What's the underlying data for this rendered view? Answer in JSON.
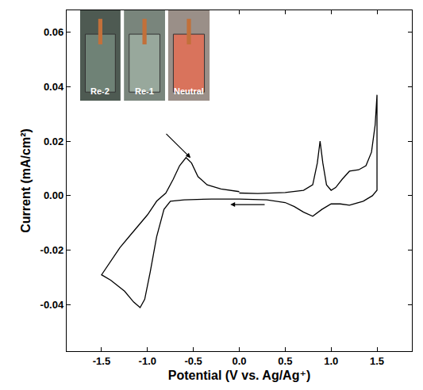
{
  "chart_data": {
    "type": "line",
    "x_label": "Potential (V vs. Ag/Ag⁺)",
    "y_label": "Current (mA/cm²)",
    "color": "#000000",
    "grid": false,
    "annotations": [
      "Re-2",
      "Re-1",
      "Neutral"
    ],
    "xlim": [
      -1.88,
      1.88
    ],
    "xticks": [
      -1.5,
      {
        "value": -1,
        "label": "-1.0"
      },
      -0.5,
      {
        "value": 0,
        "label": "0.0"
      },
      0.5,
      {
        "value": 1,
        "label": "1.0"
      },
      1.5
    ],
    "ylim": [
      -0.057,
      0.068
    ],
    "yticks": [
      -0.04,
      -0.02,
      {
        "value": 0,
        "label": "0.00"
      },
      0.02,
      0.04,
      0.06
    ],
    "x": [
      0.0,
      0.2,
      0.5,
      0.7,
      0.8,
      0.85,
      0.88,
      0.91,
      0.95,
      1.0,
      1.05,
      1.12,
      1.2,
      1.3,
      1.38,
      1.44,
      1.48,
      1.5,
      1.5,
      1.45,
      1.35,
      1.2,
      1.1,
      1.0,
      0.9,
      0.8,
      0.7,
      0.6,
      0.5,
      0.3,
      0.0,
      -0.3,
      -0.6,
      -0.75,
      -0.82,
      -0.9,
      -0.97,
      -1.03,
      -1.08,
      -1.15,
      -1.25,
      -1.4,
      -1.5,
      -1.4,
      -1.3,
      -1.2,
      -1.1,
      -1.0,
      -0.9,
      -0.8,
      -0.72,
      -0.65,
      -0.58,
      -0.52,
      -0.45,
      -0.35,
      -0.2,
      0.0
    ],
    "values": [
      0.001,
      0.0008,
      0.0012,
      0.002,
      0.004,
      0.012,
      0.02,
      0.012,
      0.004,
      0.002,
      0.003,
      0.006,
      0.009,
      0.0095,
      0.011,
      0.016,
      0.026,
      0.037,
      0.002,
      0.0,
      -0.002,
      -0.0035,
      -0.003,
      -0.003,
      -0.005,
      -0.0075,
      -0.006,
      -0.004,
      -0.0025,
      -0.0015,
      -0.0012,
      -0.0012,
      -0.0015,
      -0.002,
      -0.005,
      -0.015,
      -0.028,
      -0.038,
      -0.041,
      -0.039,
      -0.035,
      -0.031,
      -0.029,
      -0.024,
      -0.019,
      -0.015,
      -0.011,
      -0.007,
      -0.002,
      0.001,
      0.006,
      0.011,
      0.014,
      0.012,
      0.007,
      0.004,
      0.0025,
      0.0015
    ]
  }
}
